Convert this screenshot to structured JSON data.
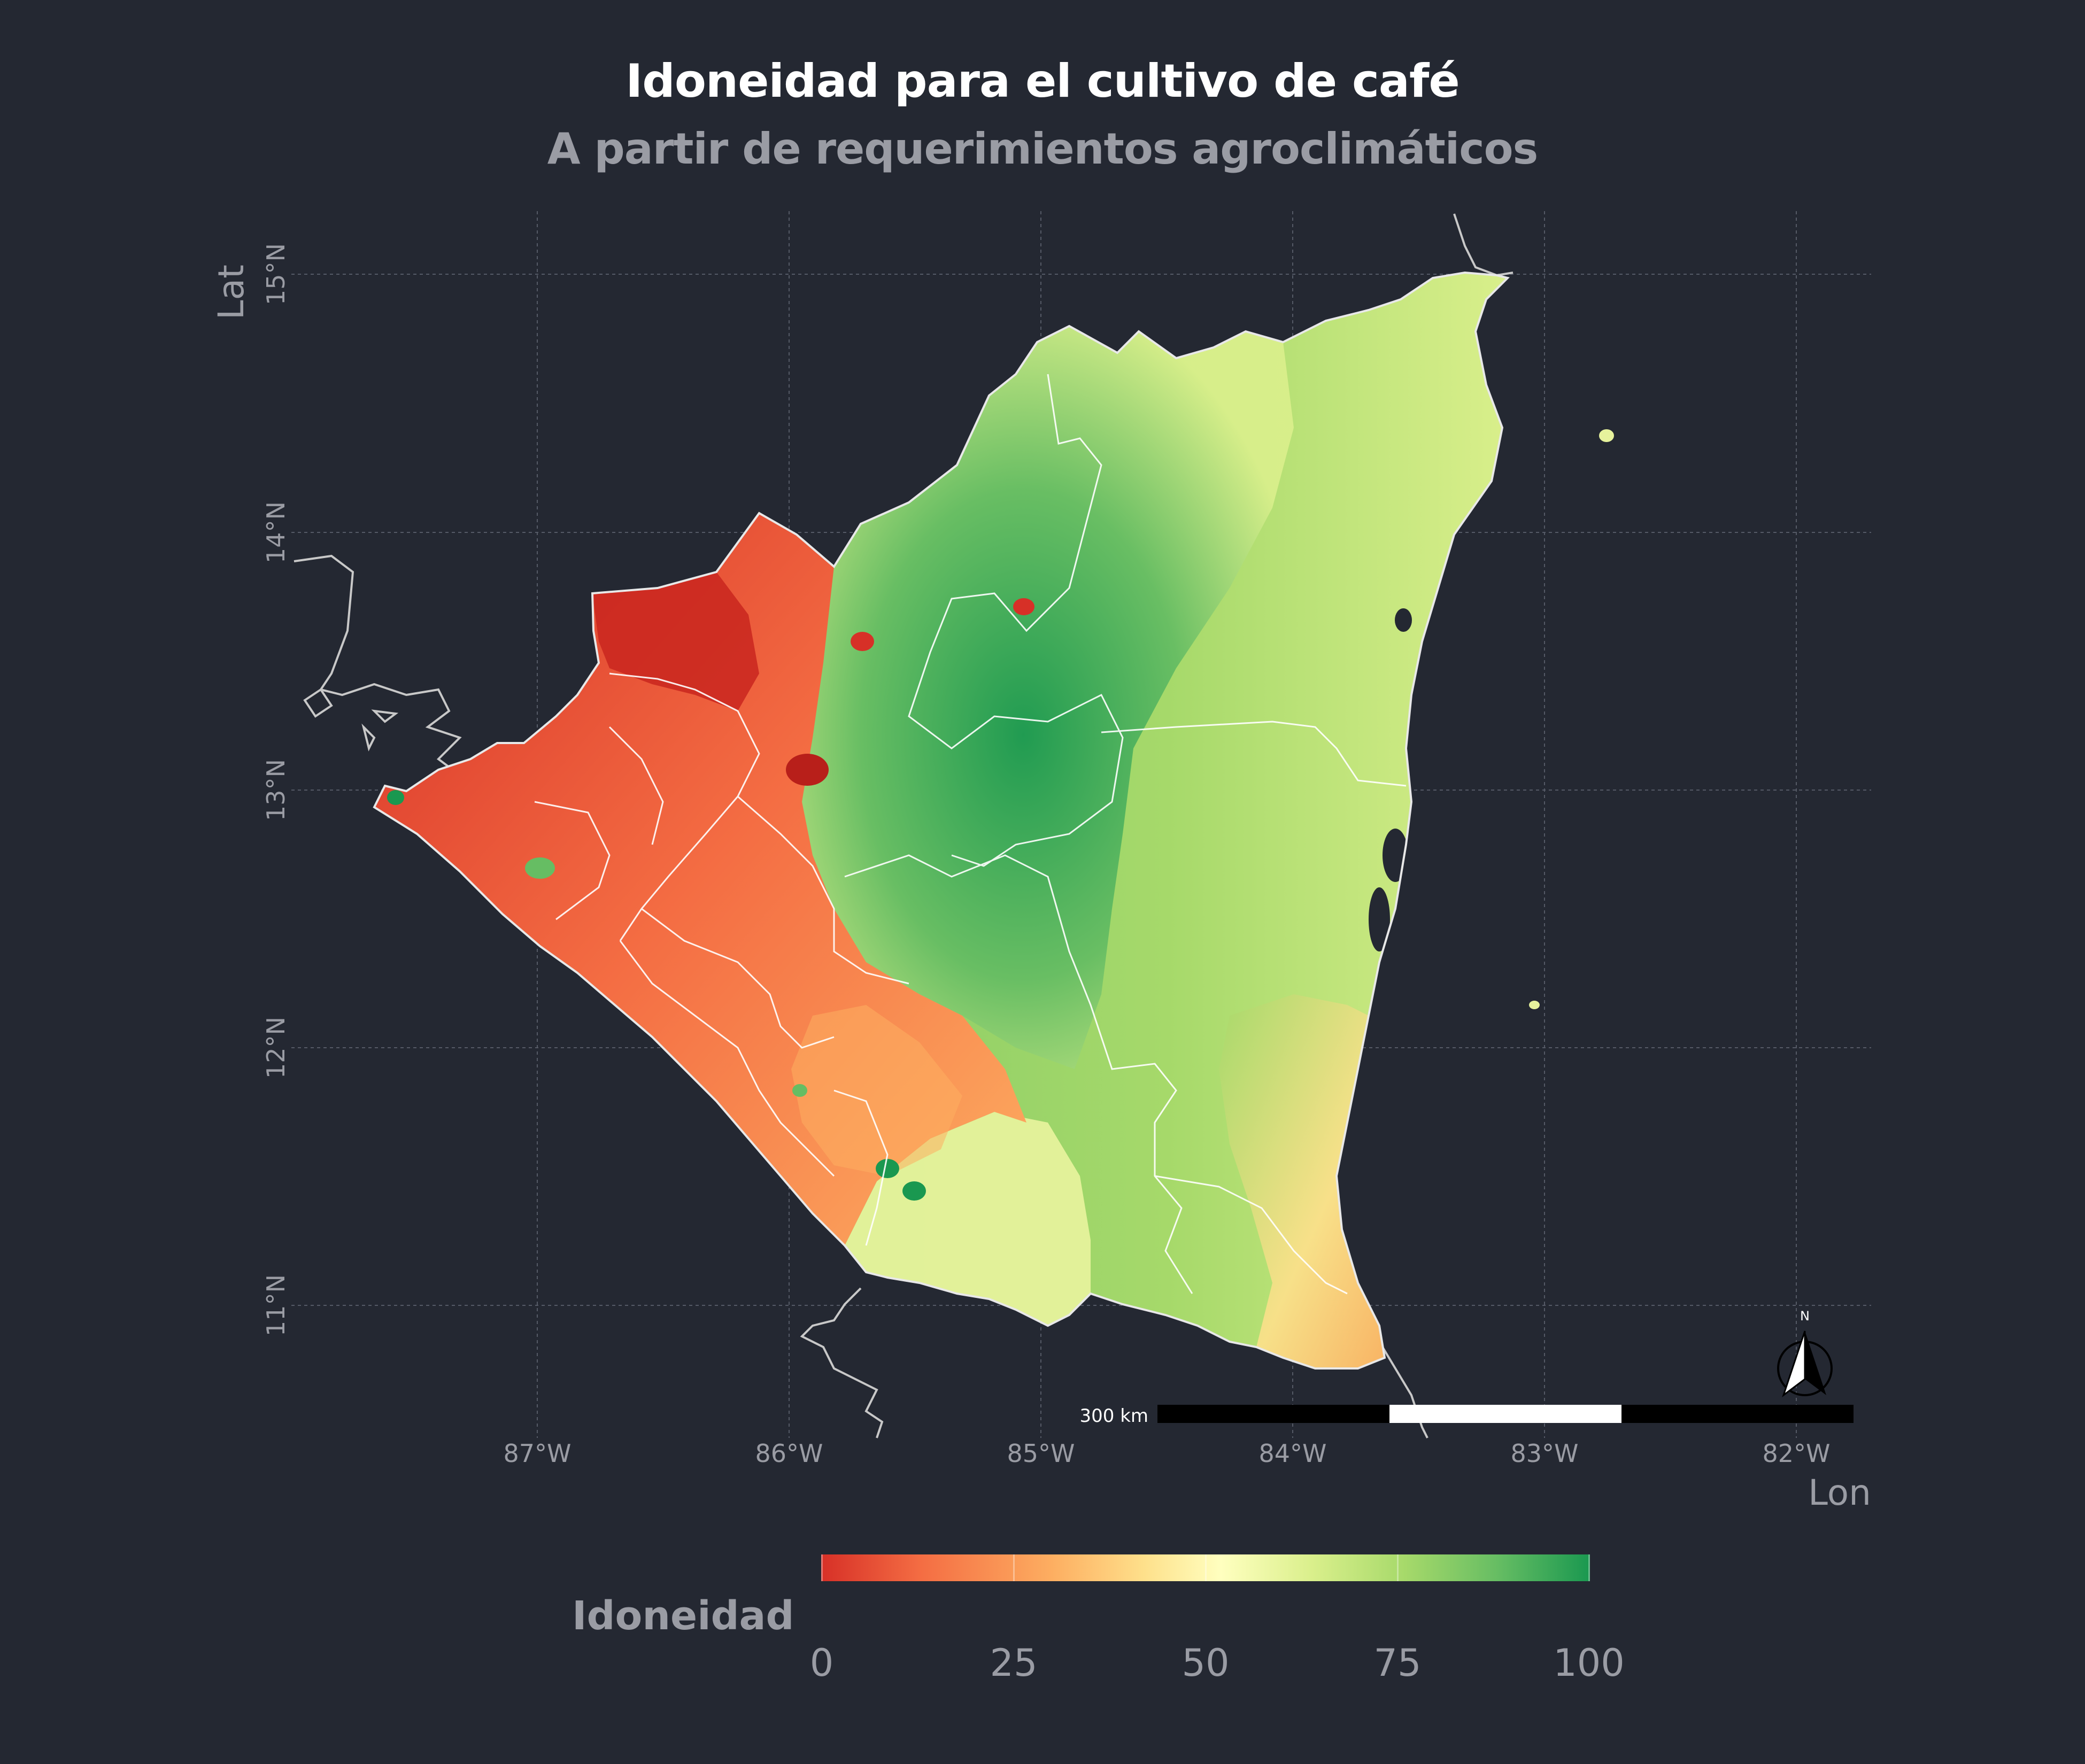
{
  "title": "Idoneidad para el cultivo de café",
  "subtitle": "A partir de requerimientos agroclimáticos",
  "axes": {
    "x_title": "Lon",
    "y_title": "Lat",
    "x_ticks": [
      "87°W",
      "86°W",
      "85°W",
      "84°W",
      "83°W",
      "82°W"
    ],
    "y_ticks": [
      "15°N",
      "14°N",
      "13°N",
      "12°N",
      "11°N"
    ]
  },
  "scale_bar": {
    "label": "300 km"
  },
  "north_arrow": {
    "label": "N",
    "icon": "north-arrow-icon"
  },
  "legend": {
    "title": "Idoneidad",
    "ticks": [
      "0",
      "25",
      "50",
      "75",
      "100"
    ],
    "colors": [
      "#d73027",
      "#fdae61",
      "#ffffbf",
      "#a6d96a",
      "#1a9850"
    ]
  },
  "colors": {
    "background": "#242832",
    "text_main": "#ffffff",
    "text_muted": "#9a9ca4",
    "grid": "#555a66",
    "border": "#ffffff"
  }
}
